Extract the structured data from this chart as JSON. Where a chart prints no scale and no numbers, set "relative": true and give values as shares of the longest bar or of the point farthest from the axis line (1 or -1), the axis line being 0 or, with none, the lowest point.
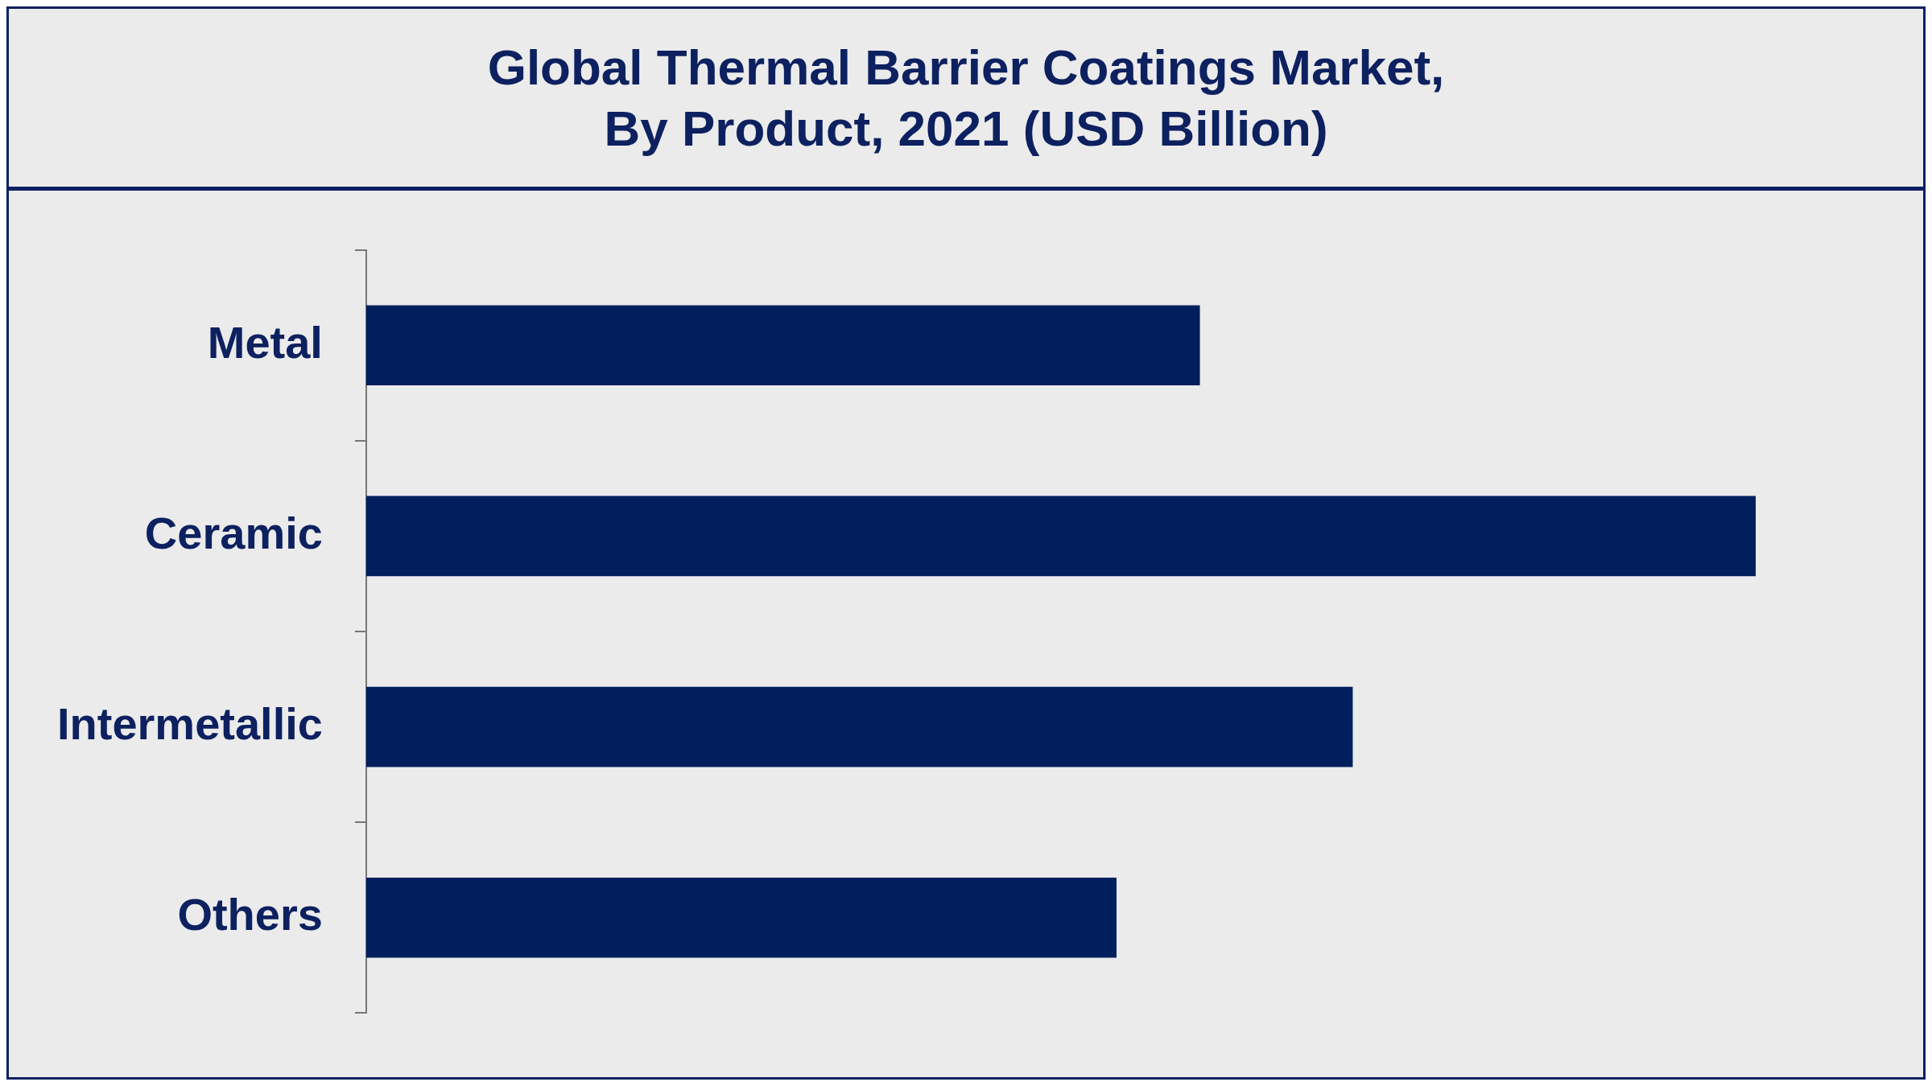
{
  "chart_data": {
    "type": "bar",
    "orientation": "horizontal",
    "relative": true,
    "title": "Global Thermal Barrier Coatings Market,\nBy Product, 2021 (USD Billion)",
    "categories": [
      "Metal",
      "Ceramic",
      "Intermetallic",
      "Others"
    ],
    "values": [
      0.6,
      1,
      0.71,
      0.54
    ],
    "color": "#001f5c",
    "grid": false,
    "legend": false
  }
}
